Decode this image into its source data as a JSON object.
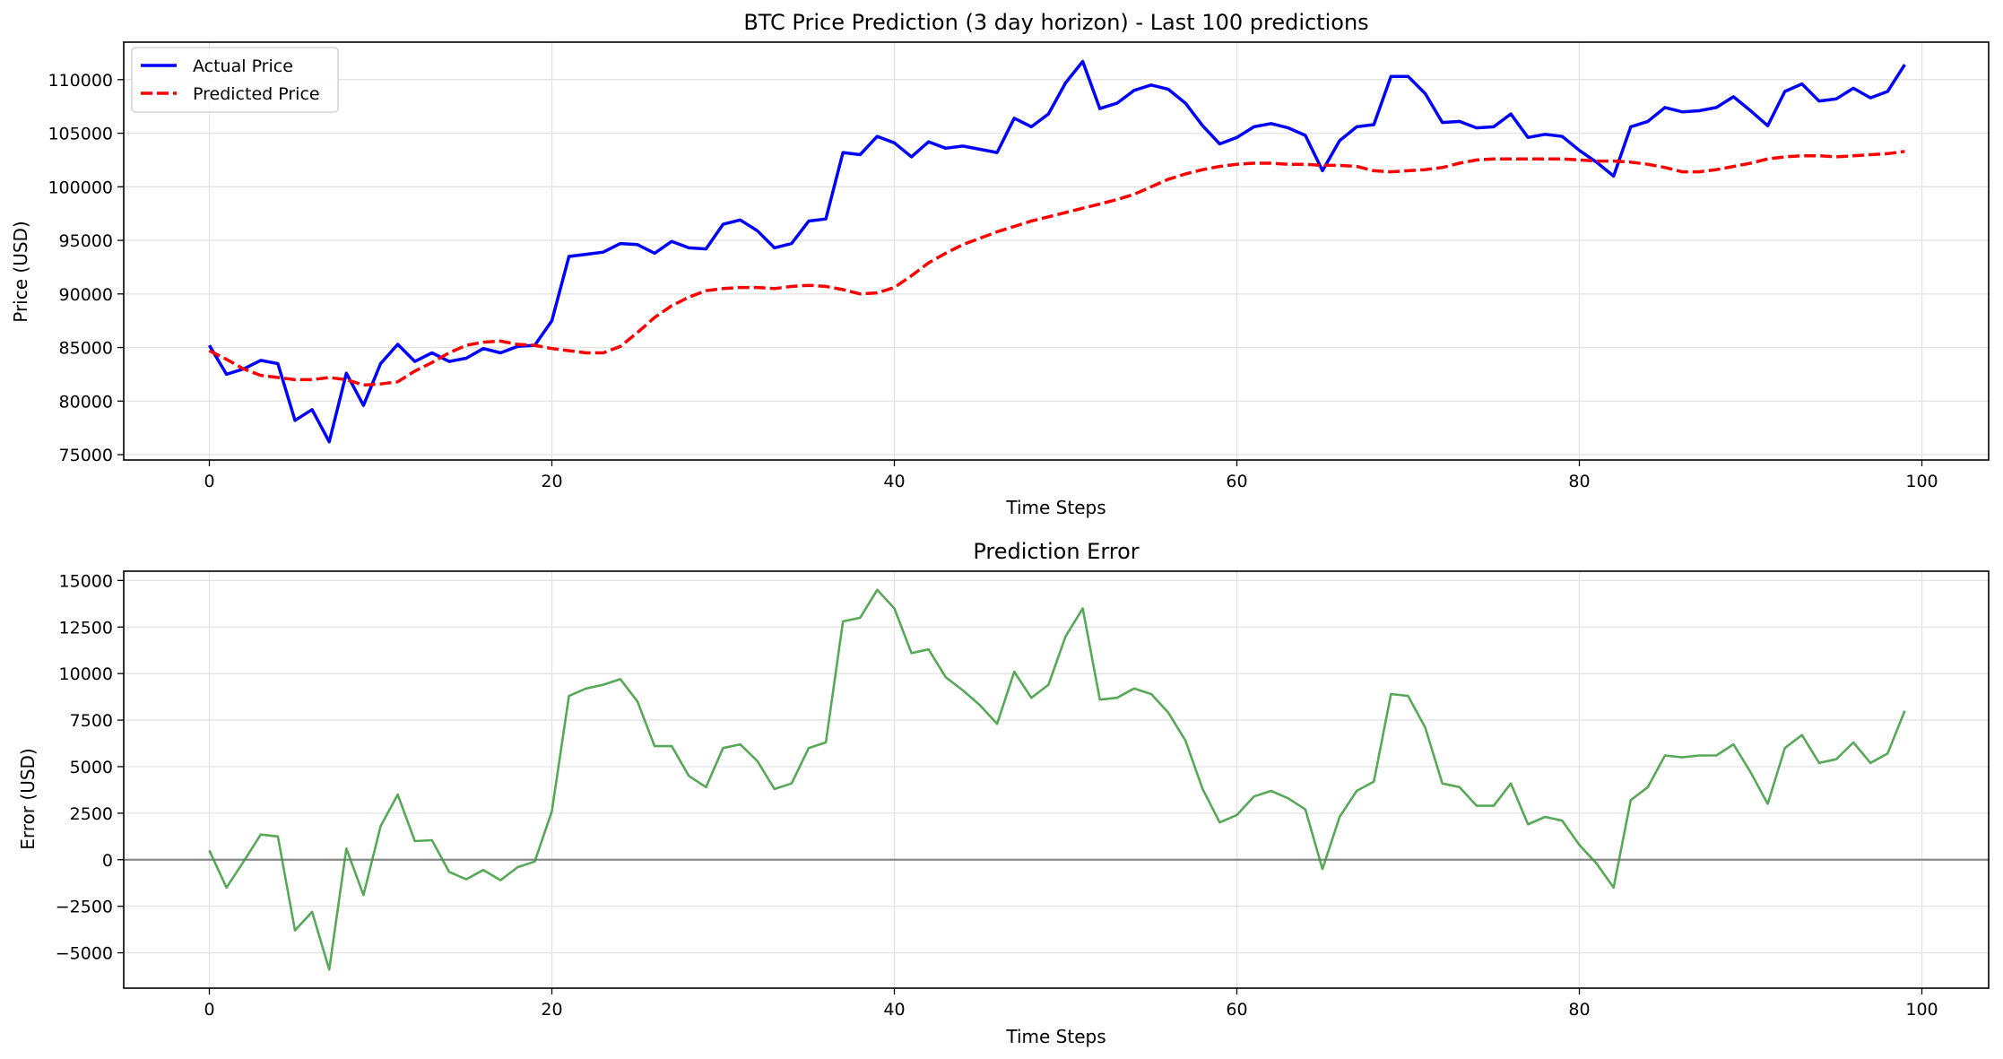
{
  "chart_data": [
    {
      "type": "line",
      "title": "BTC Price Prediction (3 day horizon) - Last 100 predictions",
      "xlabel": "Time Steps",
      "ylabel": "Price (USD)",
      "xlim": [
        -5,
        103.9
      ],
      "ylim": [
        74500,
        113500
      ],
      "x_ticks": [
        0,
        20,
        40,
        60,
        80,
        100
      ],
      "y_ticks": [
        75000,
        80000,
        85000,
        90000,
        95000,
        100000,
        105000,
        110000
      ],
      "grid": true,
      "legend_position": "top-left",
      "series": [
        {
          "name": "Actual Price",
          "color": "#0000ff",
          "style": "solid",
          "values": [
            85200,
            82500,
            83000,
            83800,
            83500,
            78200,
            79200,
            76200,
            82600,
            79600,
            83500,
            85300,
            83700,
            84500,
            83700,
            84000,
            84900,
            84500,
            85100,
            85200,
            87500,
            93500,
            93700,
            93900,
            94700,
            94600,
            93800,
            94900,
            94300,
            94200,
            96500,
            96900,
            95900,
            94300,
            94700,
            96800,
            97000,
            103200,
            103000,
            104700,
            104100,
            102800,
            104200,
            103600,
            103800,
            103500,
            103200,
            106400,
            105600,
            106800,
            109700,
            111700,
            107300,
            107800,
            109000,
            109500,
            109100,
            107800,
            105700,
            104000,
            104600,
            105600,
            105900,
            105500,
            104800,
            101500,
            104300,
            105600,
            105800,
            110300,
            110300,
            108700,
            106000,
            106100,
            105500,
            105600,
            106800,
            104600,
            104900,
            104700,
            103400,
            102300,
            101000,
            105600,
            106100,
            107400,
            107000,
            107100,
            107400,
            108400,
            107100,
            105700,
            108900,
            109600,
            108000,
            108200,
            109200,
            108300,
            108900,
            111400
          ]
        },
        {
          "name": "Predicted Price",
          "color": "#ff0000",
          "style": "dashed",
          "values": [
            84700,
            83900,
            83000,
            82400,
            82200,
            82000,
            82000,
            82200,
            82000,
            81500,
            81600,
            81800,
            82800,
            83600,
            84500,
            85200,
            85500,
            85600,
            85300,
            85200,
            84900,
            84700,
            84500,
            84500,
            85100,
            86400,
            87800,
            88900,
            89700,
            90300,
            90500,
            90600,
            90600,
            90500,
            90700,
            90800,
            90700,
            90400,
            90000,
            90100,
            90600,
            91700,
            92900,
            93800,
            94600,
            95200,
            95800,
            96300,
            96800,
            97200,
            97600,
            98000,
            98400,
            98800,
            99300,
            100000,
            100700,
            101200,
            101600,
            101900,
            102100,
            102200,
            102200,
            102100,
            102100,
            102000,
            102000,
            101900,
            101500,
            101400,
            101500,
            101600,
            101800,
            102200,
            102500,
            102600,
            102600,
            102600,
            102600,
            102600,
            102500,
            102400,
            102400,
            102300,
            102100,
            101800,
            101400,
            101400,
            101600,
            101900,
            102200,
            102600,
            102800,
            102900,
            102900,
            102800,
            102900,
            103000,
            103100,
            103300
          ]
        }
      ]
    },
    {
      "type": "line",
      "title": "Prediction Error",
      "xlabel": "Time Steps",
      "ylabel": "Error (USD)",
      "xlim": [
        -5,
        103.9
      ],
      "ylim": [
        -6900,
        15500
      ],
      "x_ticks": [
        0,
        20,
        40,
        60,
        80,
        100
      ],
      "y_ticks": [
        -5000,
        -2500,
        0,
        2500,
        5000,
        7500,
        10000,
        12500,
        15000
      ],
      "y_tick_labels": [
        "−5000",
        "−2500",
        "0",
        "2500",
        "5000",
        "7500",
        "10000",
        "12500",
        "15000"
      ],
      "grid": true,
      "zero_line": true,
      "series": [
        {
          "color": "#3a9a3a",
          "style": "solid",
          "values": [
            500,
            -1500,
            -100,
            1350,
            1250,
            -3800,
            -2800,
            -5900,
            600,
            -1900,
            1800,
            3500,
            1000,
            1050,
            -650,
            -1050,
            -550,
            -1100,
            -400,
            -100,
            2600,
            8800,
            9200,
            9400,
            9700,
            8500,
            6100,
            6100,
            4500,
            3900,
            6000,
            6200,
            5300,
            3800,
            4100,
            6000,
            6300,
            12800,
            13000,
            14500,
            13500,
            11100,
            11300,
            9800,
            9100,
            8300,
            7300,
            10100,
            8700,
            9400,
            12000,
            13500,
            8600,
            8700,
            9200,
            8900,
            7900,
            6400,
            3800,
            2000,
            2400,
            3400,
            3700,
            3300,
            2700,
            -500,
            2300,
            3700,
            4200,
            8900,
            8800,
            7100,
            4100,
            3900,
            2900,
            2900,
            4100,
            1900,
            2300,
            2100,
            800,
            -200,
            -1500,
            3200,
            3900,
            5600,
            5500,
            5600,
            5600,
            6200,
            4700,
            3000,
            6000,
            6700,
            5200,
            5400,
            6300,
            5200,
            5700,
            8000
          ]
        }
      ]
    }
  ]
}
